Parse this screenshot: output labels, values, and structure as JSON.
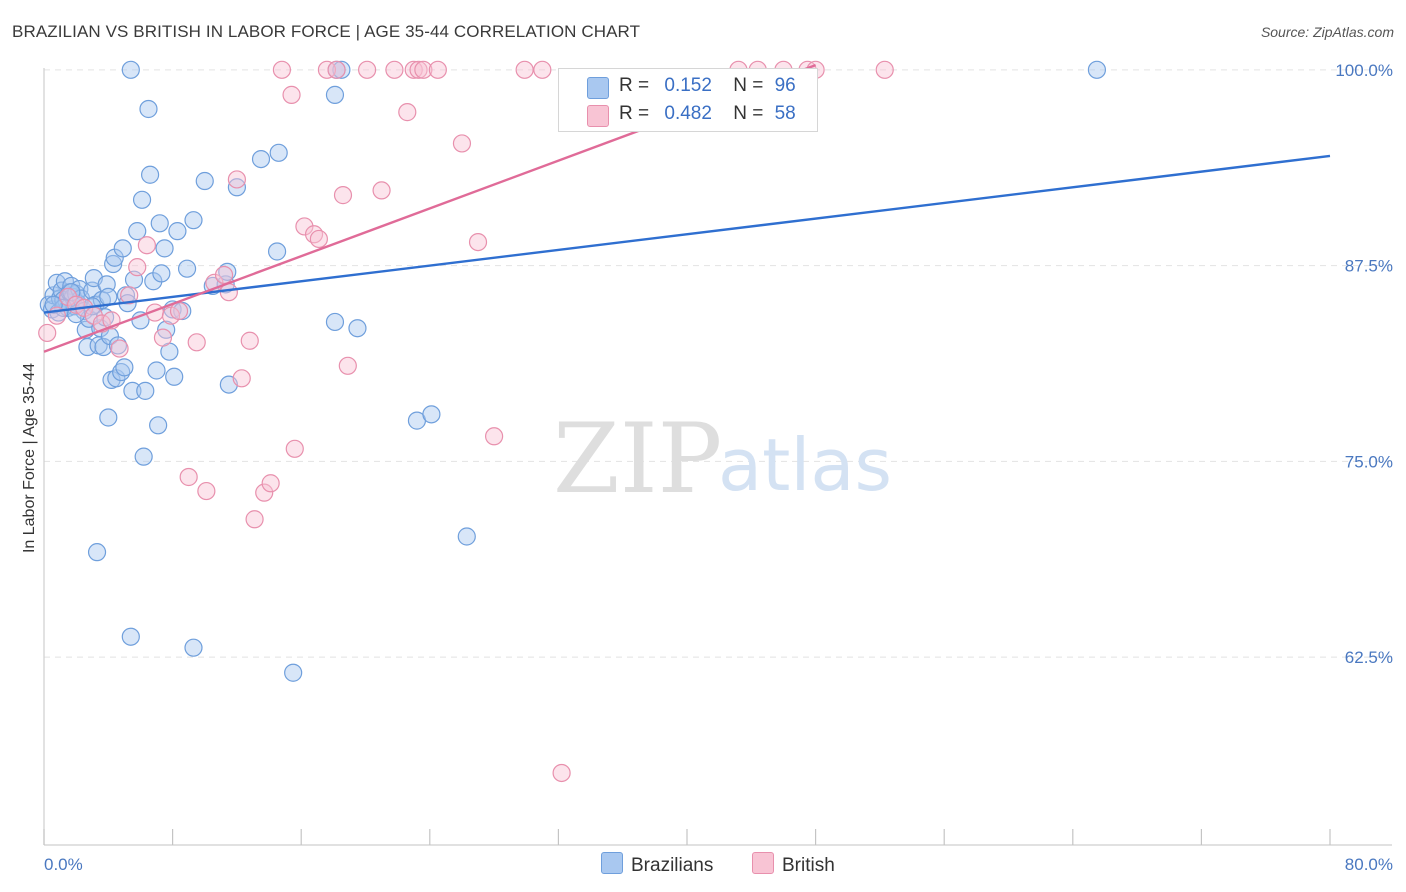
{
  "title": "BRAZILIAN VS BRITISH IN LABOR FORCE | AGE 35-44 CORRELATION CHART",
  "source": "Source: ZipAtlas.com",
  "watermark": {
    "zip": "ZIP",
    "atlas": "atlas"
  },
  "legend": {
    "rows": [
      {
        "r_label": "R =",
        "r_value": "0.152",
        "n_label": "N =",
        "n_value": "96",
        "color": "#a9c8f0",
        "border": "#6f9fdc"
      },
      {
        "r_label": "R =",
        "r_value": "0.482",
        "n_label": "N =",
        "n_value": "58",
        "color": "#f8c4d4",
        "border": "#e890ad"
      }
    ],
    "bottom": [
      {
        "label": "Brazilians",
        "color": "#a9c8f0",
        "border": "#6f9fdc"
      },
      {
        "label": "British",
        "color": "#f8c4d4",
        "border": "#e890ad"
      }
    ]
  },
  "chart_data": {
    "type": "scatter",
    "title": "BRAZILIAN VS BRITISH IN LABOR FORCE | AGE 35-44 CORRELATION CHART",
    "xlabel": "",
    "ylabel": "In Labor Force | Age 35-44",
    "xlim": [
      0,
      80
    ],
    "ylim": [
      50.5,
      100.5
    ],
    "x_tick_labels": [
      "0.0%",
      "80.0%"
    ],
    "y_ticks": [
      62.5,
      75.0,
      87.5,
      100.0
    ],
    "y_tick_labels": [
      "62.5%",
      "75.0%",
      "87.5%",
      "100.0%"
    ],
    "grid": true,
    "series": [
      {
        "name": "Brazilians",
        "color": "#6f9fdc",
        "fill": "#a9c8f0",
        "trend": {
          "x0": 0,
          "y0": 84.5,
          "x1": 80,
          "y1": 94.5
        },
        "points": [
          [
            0.3,
            85.0
          ],
          [
            0.5,
            84.7
          ],
          [
            0.6,
            85.6
          ],
          [
            0.8,
            86.4
          ],
          [
            0.9,
            84.5
          ],
          [
            1.0,
            85.4
          ],
          [
            1.1,
            85.9
          ],
          [
            1.2,
            85.3
          ],
          [
            1.3,
            86.5
          ],
          [
            1.4,
            85.2
          ],
          [
            1.5,
            84.8
          ],
          [
            1.6,
            85.8
          ],
          [
            1.7,
            86.2
          ],
          [
            1.8,
            85.5
          ],
          [
            1.9,
            84.9
          ],
          [
            2.0,
            85.7
          ],
          [
            2.1,
            85.1
          ],
          [
            2.2,
            86.0
          ],
          [
            2.3,
            85.4
          ],
          [
            2.5,
            84.6
          ],
          [
            2.6,
            83.4
          ],
          [
            2.7,
            82.3
          ],
          [
            2.8,
            84.1
          ],
          [
            3.0,
            85.9
          ],
          [
            3.1,
            86.7
          ],
          [
            3.2,
            85.0
          ],
          [
            3.4,
            82.4
          ],
          [
            3.5,
            83.5
          ],
          [
            3.6,
            85.3
          ],
          [
            3.7,
            82.3
          ],
          [
            3.8,
            84.2
          ],
          [
            3.9,
            86.3
          ],
          [
            4.0,
            85.5
          ],
          [
            4.1,
            83.0
          ],
          [
            4.2,
            80.2
          ],
          [
            4.3,
            87.6
          ],
          [
            4.4,
            88.0
          ],
          [
            4.5,
            80.3
          ],
          [
            4.6,
            82.4
          ],
          [
            4.8,
            80.7
          ],
          [
            4.9,
            88.6
          ],
          [
            5.0,
            81.0
          ],
          [
            5.1,
            85.6
          ],
          [
            5.2,
            85.1
          ],
          [
            5.4,
            100.0
          ],
          [
            5.5,
            79.5
          ],
          [
            5.6,
            86.6
          ],
          [
            5.8,
            89.7
          ],
          [
            6.0,
            84.0
          ],
          [
            6.1,
            91.7
          ],
          [
            6.2,
            75.3
          ],
          [
            6.3,
            79.5
          ],
          [
            6.5,
            97.5
          ],
          [
            6.6,
            93.3
          ],
          [
            6.8,
            86.5
          ],
          [
            7.0,
            80.8
          ],
          [
            7.1,
            77.3
          ],
          [
            7.2,
            90.2
          ],
          [
            7.3,
            87.0
          ],
          [
            7.5,
            88.6
          ],
          [
            7.6,
            83.4
          ],
          [
            7.8,
            82.0
          ],
          [
            8.0,
            84.7
          ],
          [
            8.1,
            80.4
          ],
          [
            8.3,
            89.7
          ],
          [
            8.6,
            84.6
          ],
          [
            8.9,
            87.3
          ],
          [
            9.3,
            90.4
          ],
          [
            10.0,
            92.9
          ],
          [
            10.5,
            86.2
          ],
          [
            11.3,
            86.3
          ],
          [
            11.4,
            87.1
          ],
          [
            11.5,
            79.9
          ],
          [
            12.0,
            92.5
          ],
          [
            13.5,
            94.3
          ],
          [
            14.5,
            88.4
          ],
          [
            14.6,
            94.7
          ],
          [
            15.5,
            61.5
          ],
          [
            18.1,
            98.4
          ],
          [
            18.2,
            100.0
          ],
          [
            18.1,
            83.9
          ],
          [
            18.5,
            100.0
          ],
          [
            19.5,
            83.5
          ],
          [
            23.2,
            77.6
          ],
          [
            24.1,
            78.0
          ],
          [
            26.3,
            70.2
          ],
          [
            5.4,
            63.8
          ],
          [
            9.3,
            63.1
          ],
          [
            3.3,
            69.2
          ],
          [
            4.0,
            77.8
          ],
          [
            65.5,
            100.0
          ],
          [
            1.2,
            84.8
          ],
          [
            2.0,
            84.4
          ],
          [
            3.0,
            84.9
          ],
          [
            0.6,
            85.0
          ],
          [
            1.7,
            85.8
          ]
        ]
      },
      {
        "name": "British",
        "color": "#e890ad",
        "fill": "#f8c4d4",
        "trend": {
          "x0": 0,
          "y0": 82.0,
          "x1": 48,
          "y1": 100.3
        },
        "points": [
          [
            0.2,
            83.2
          ],
          [
            0.8,
            84.3
          ],
          [
            1.5,
            85.5
          ],
          [
            2.0,
            85.0
          ],
          [
            2.5,
            84.8
          ],
          [
            3.1,
            84.3
          ],
          [
            3.6,
            83.8
          ],
          [
            4.2,
            84.0
          ],
          [
            4.7,
            82.2
          ],
          [
            5.3,
            85.6
          ],
          [
            5.8,
            87.4
          ],
          [
            6.4,
            88.8
          ],
          [
            6.9,
            84.5
          ],
          [
            7.4,
            82.9
          ],
          [
            7.9,
            84.3
          ],
          [
            8.4,
            84.6
          ],
          [
            9.0,
            74.0
          ],
          [
            9.5,
            82.6
          ],
          [
            10.1,
            73.1
          ],
          [
            10.6,
            86.4
          ],
          [
            11.2,
            86.9
          ],
          [
            11.5,
            85.8
          ],
          [
            12.0,
            93.0
          ],
          [
            12.3,
            80.3
          ],
          [
            12.8,
            82.7
          ],
          [
            13.1,
            71.3
          ],
          [
            13.7,
            73.0
          ],
          [
            14.1,
            73.6
          ],
          [
            14.8,
            100.0
          ],
          [
            15.4,
            98.4
          ],
          [
            15.6,
            75.8
          ],
          [
            16.2,
            90.0
          ],
          [
            16.8,
            89.5
          ],
          [
            17.1,
            89.2
          ],
          [
            17.6,
            100.0
          ],
          [
            18.2,
            100.0
          ],
          [
            18.6,
            92.0
          ],
          [
            18.9,
            81.1
          ],
          [
            20.1,
            100.0
          ],
          [
            21.0,
            92.3
          ],
          [
            21.8,
            100.0
          ],
          [
            22.6,
            97.3
          ],
          [
            23.0,
            100.0
          ],
          [
            23.3,
            100.0
          ],
          [
            23.6,
            100.0
          ],
          [
            24.5,
            100.0
          ],
          [
            26.0,
            95.3
          ],
          [
            27.0,
            89.0
          ],
          [
            28.0,
            76.6
          ],
          [
            29.9,
            100.0
          ],
          [
            32.2,
            55.1
          ],
          [
            43.2,
            100.0
          ],
          [
            44.4,
            100.0
          ],
          [
            46.0,
            100.0
          ],
          [
            47.5,
            100.0
          ],
          [
            48.0,
            100.0
          ],
          [
            52.3,
            100.0
          ],
          [
            31.0,
            100.0
          ]
        ]
      }
    ]
  }
}
